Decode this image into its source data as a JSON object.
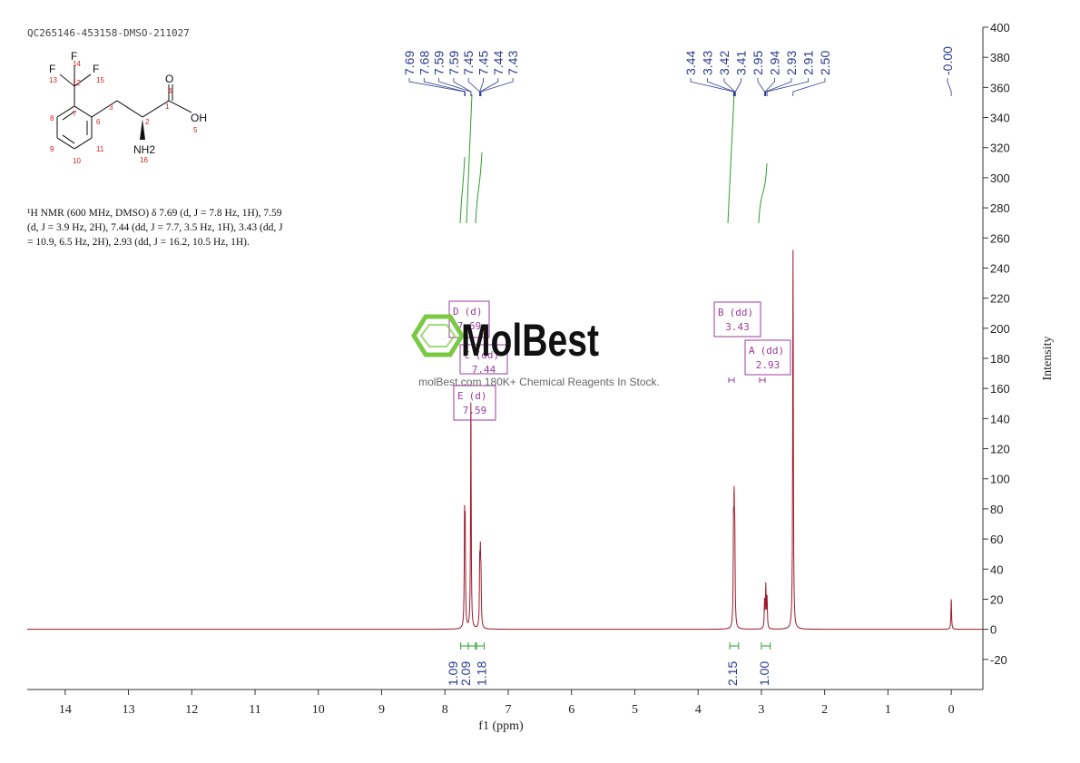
{
  "sample_id": "QC265146-453158-DMSO-211027",
  "nmr_description": {
    "line1": "¹H NMR (600 MHz, DMSO) δ 7.69 (d, J = 7.8 Hz, 1H), 7.59",
    "line2": "(d, J = 3.9 Hz, 2H), 7.44 (dd, J = 7.7, 3.5 Hz, 1H), 3.43 (dd, J",
    "line3": "= 10.9, 6.5 Hz, 2H), 2.93 (dd, J = 16.2, 10.5 Hz, 1H)."
  },
  "structure": {
    "atoms": {
      "F_a": "F",
      "F_b": "F",
      "F_c": "F",
      "O": "O",
      "OH": "OH",
      "NH2": "NH2"
    },
    "numbers": [
      "14",
      "13",
      "12",
      "15",
      "4",
      "1",
      "3",
      "7",
      "8",
      "6",
      "2",
      "9",
      "11",
      "5",
      "10",
      "16"
    ]
  },
  "watermark": {
    "brand": "MolBest",
    "tagline": "molBest.com 180K+ Chemical Reagents In Stock.",
    "color": "#7ac943"
  },
  "colors": {
    "spectrum": "#a0182b",
    "peak_labels": "#2b3a8f",
    "integral": "#2f9e2f",
    "multiplet_box": "#9b3d9b",
    "axis": "#333333"
  },
  "chart_data": {
    "type": "line",
    "xlabel": "f1 (ppm)",
    "ylabel": "Intensity",
    "xlim": [
      14.6,
      -0.5
    ],
    "ylim": [
      -40,
      400
    ],
    "x_ticks": [
      14,
      13,
      12,
      11,
      10,
      9,
      8,
      7,
      6,
      5,
      4,
      3,
      2,
      1,
      0
    ],
    "y_ticks": [
      400,
      380,
      360,
      340,
      320,
      300,
      280,
      260,
      240,
      220,
      200,
      180,
      160,
      140,
      120,
      100,
      80,
      60,
      40,
      20,
      0,
      -20
    ],
    "peaks": [
      {
        "ppm": 7.69,
        "height": 66
      },
      {
        "ppm": 7.68,
        "height": 60
      },
      {
        "ppm": 7.59,
        "height": 150
      },
      {
        "ppm": 7.45,
        "height": 38
      },
      {
        "ppm": 7.44,
        "height": 40
      },
      {
        "ppm": 7.43,
        "height": 30
      },
      {
        "ppm": 3.44,
        "height": 58
      },
      {
        "ppm": 3.43,
        "height": 66
      },
      {
        "ppm": 3.42,
        "height": 52
      },
      {
        "ppm": 2.95,
        "height": 18
      },
      {
        "ppm": 2.93,
        "height": 28
      },
      {
        "ppm": 2.91,
        "height": 20
      },
      {
        "ppm": 2.5,
        "height": 252
      },
      {
        "ppm": 0.0,
        "height": 20
      }
    ],
    "peak_label_groups": [
      {
        "labels": [
          "7.69",
          "7.68",
          "7.59",
          "7.59",
          "7.45",
          "7.45",
          "7.44",
          "7.43"
        ]
      },
      {
        "labels": [
          "3.44",
          "3.43",
          "3.42",
          "3.41",
          "2.95",
          "2.94",
          "2.93",
          "2.91",
          "2.50"
        ]
      },
      {
        "labels": [
          "-0.00"
        ]
      }
    ],
    "integrals": [
      {
        "center": 7.69,
        "from": 7.75,
        "to": 7.63,
        "value": "1.09"
      },
      {
        "center": 7.59,
        "from": 7.63,
        "to": 7.52,
        "value": "2.09"
      },
      {
        "center": 7.44,
        "from": 7.5,
        "to": 7.38,
        "value": "1.18"
      },
      {
        "center": 3.43,
        "from": 3.5,
        "to": 3.36,
        "value": "2.15"
      },
      {
        "center": 2.93,
        "from": 3.0,
        "to": 2.86,
        "value": "1.00"
      }
    ],
    "multiplets": [
      {
        "letter": "D",
        "mult": "(d)",
        "shift": "7.69"
      },
      {
        "letter": "C",
        "mult": "(dd)",
        "shift": "7.44"
      },
      {
        "letter": "E",
        "mult": "(d)",
        "shift": "7.59"
      },
      {
        "letter": "B",
        "mult": "(dd)",
        "shift": "3.43"
      },
      {
        "letter": "A",
        "mult": "(dd)",
        "shift": "2.93"
      }
    ]
  }
}
